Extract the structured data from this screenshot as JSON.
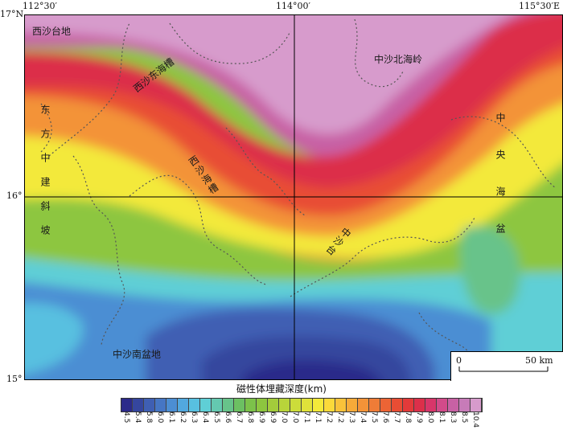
{
  "coords": {
    "top": [
      "112°30′",
      "114°00′",
      "115°30′E"
    ],
    "left": [
      "17°N",
      "16°",
      "15°"
    ]
  },
  "regions": {
    "xisha_platform": "西沙台地",
    "zhongsha_north_ridge": "中沙北海岭",
    "xisha_east_trough": "西沙东海槽",
    "xisha_trough": "西沙海槽",
    "zhongsha_platform": "中沙台",
    "zhongsha_south_basin": "中沙南盆地",
    "central_basin": "中央海盆",
    "dongfang_slope": "东方中建斜坡"
  },
  "scale": {
    "zero": "0",
    "dist": "50 km"
  },
  "legend": {
    "title": "磁性体埋藏深度(km)",
    "ticks": [
      "4.5",
      "5.4",
      "5.8",
      "6.0",
      "6.1",
      "6.2",
      "6.3",
      "6.4",
      "6.5",
      "6.6",
      "6.7",
      "6.8",
      "6.9",
      "6.9",
      "7.0",
      "7.0",
      "7.1",
      "7.1",
      "7.2",
      "7.2",
      "7.3",
      "7.4",
      "7.5",
      "7.6",
      "7.7",
      "7.8",
      "7.9",
      "8.0",
      "8.1",
      "8.3",
      "8.5",
      "10.4"
    ],
    "colors": [
      "#2b2a8a",
      "#35469e",
      "#3f5fb3",
      "#4676c4",
      "#4c8ed3",
      "#52a8de",
      "#58c0e0",
      "#5fcfd6",
      "#64c9b0",
      "#67c38a",
      "#6cc062",
      "#7cc24a",
      "#8dc63f",
      "#a3cc3b",
      "#b8d43a",
      "#ccdc3a",
      "#e0e23a",
      "#f3e93a",
      "#fbd93a",
      "#f9c23a",
      "#f6aa39",
      "#f39338",
      "#ef7c37",
      "#ec6435",
      "#e84d34",
      "#e33a3a",
      "#dc2f4a",
      "#d8366a",
      "#d24b8a",
      "#c861a4",
      "#c77bb8",
      "#d79bcc"
    ]
  }
}
